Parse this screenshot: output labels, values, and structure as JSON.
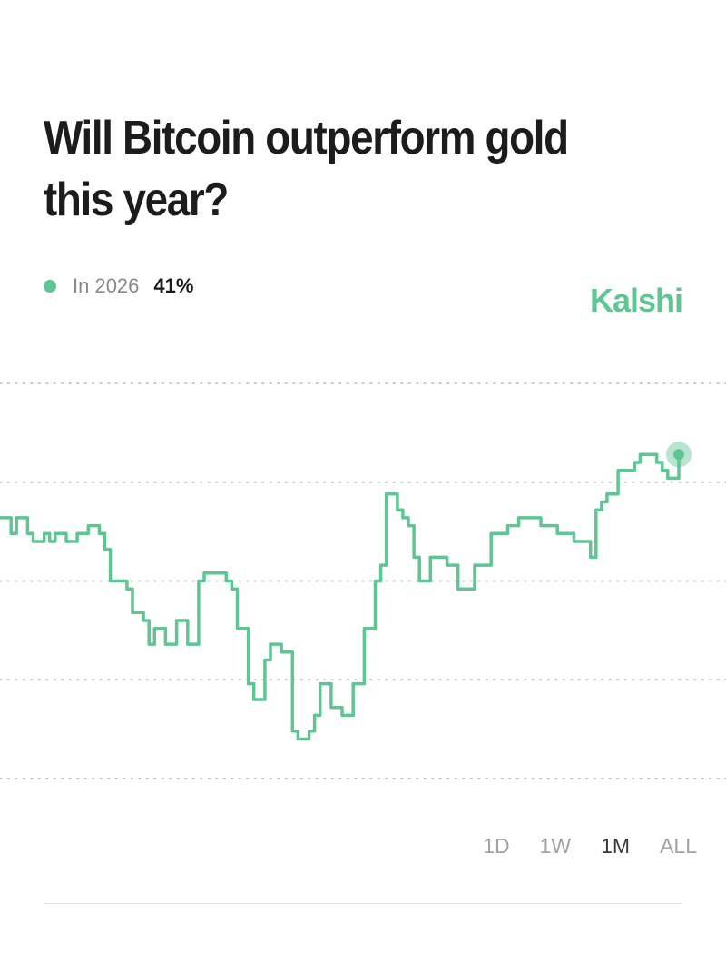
{
  "question": {
    "title": "Will Bitcoin outperform gold this year?"
  },
  "legend": {
    "name": "In 2026",
    "value": "41%"
  },
  "brand": {
    "name": "Kalshi"
  },
  "colors": {
    "accent": "#5fc592",
    "grid": "#c9c9c9",
    "muted_text": "#a3a3a3",
    "active_text": "#3a3a3a"
  },
  "range_tabs": [
    {
      "label": "1D",
      "active": false
    },
    {
      "label": "1W",
      "active": false
    },
    {
      "label": "1M",
      "active": true
    },
    {
      "label": "ALL",
      "active": false
    }
  ],
  "chart_data": {
    "type": "line",
    "series": [
      {
        "name": "In 2026",
        "values": [
          33,
          33,
          31,
          33,
          33,
          31,
          30,
          30,
          31,
          30,
          31,
          31,
          30,
          30,
          31,
          31,
          32,
          32,
          31,
          29,
          25,
          25,
          25,
          24,
          21,
          21,
          20,
          17,
          19,
          19,
          17,
          17,
          20,
          20,
          17,
          17,
          25,
          26,
          26,
          26,
          26,
          25,
          24,
          19,
          19,
          12,
          10,
          10,
          15,
          17,
          17,
          16,
          16,
          6,
          5,
          5,
          6,
          8,
          12,
          12,
          9,
          9,
          8,
          8,
          12,
          12,
          19,
          19,
          25,
          27,
          36,
          36,
          34,
          33,
          32,
          28,
          25,
          25,
          28,
          28,
          28,
          27,
          27,
          24,
          24,
          24,
          27,
          27,
          27,
          31,
          31,
          31,
          32,
          32,
          33,
          33,
          33,
          33,
          32,
          32,
          32,
          31,
          31,
          31,
          30,
          30,
          30,
          28,
          34,
          35,
          36,
          36,
          39,
          39,
          39,
          40,
          41,
          41,
          41,
          40,
          39,
          38,
          38,
          41
        ]
      }
    ],
    "ylim": [
      0,
      50
    ],
    "grid": true,
    "legend_position": "top-left"
  }
}
